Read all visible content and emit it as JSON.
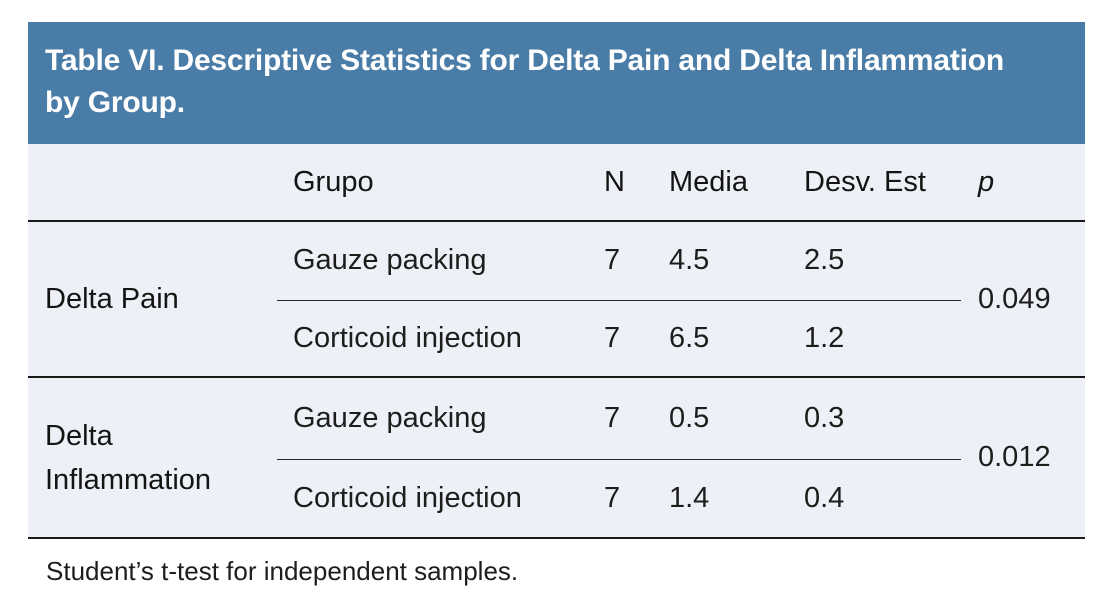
{
  "table": {
    "title": "Table VI. Descriptive Statistics for Delta Pain and Delta Inflammation by Group.",
    "columns": {
      "group_label": "",
      "grupo": "Grupo",
      "n": "N",
      "media": "Media",
      "desv": "Desv. Est",
      "p": "p"
    },
    "groups": [
      {
        "label": "Delta Pain",
        "p": "0.049",
        "rows": [
          {
            "grupo": "Gauze packing",
            "n": "7",
            "media": "4.5",
            "desv": "2.5"
          },
          {
            "grupo": "Corticoid injection",
            "n": "7",
            "media": "6.5",
            "desv": "1.2"
          }
        ]
      },
      {
        "label": "Delta Inflammation",
        "p": "0.012",
        "rows": [
          {
            "grupo": "Gauze packing",
            "n": "7",
            "media": "0.5",
            "desv": "0.3"
          },
          {
            "grupo": "Corticoid injection",
            "n": "7",
            "media": "1.4",
            "desv": "0.4"
          }
        ]
      }
    ],
    "footnote": "Student’s t-test for independent samples."
  },
  "colors": {
    "header_bg": "#4A7CA8",
    "body_bg": "#EDF0F7",
    "rule": "#1A1A1A",
    "title_text": "#FFFFFF"
  }
}
